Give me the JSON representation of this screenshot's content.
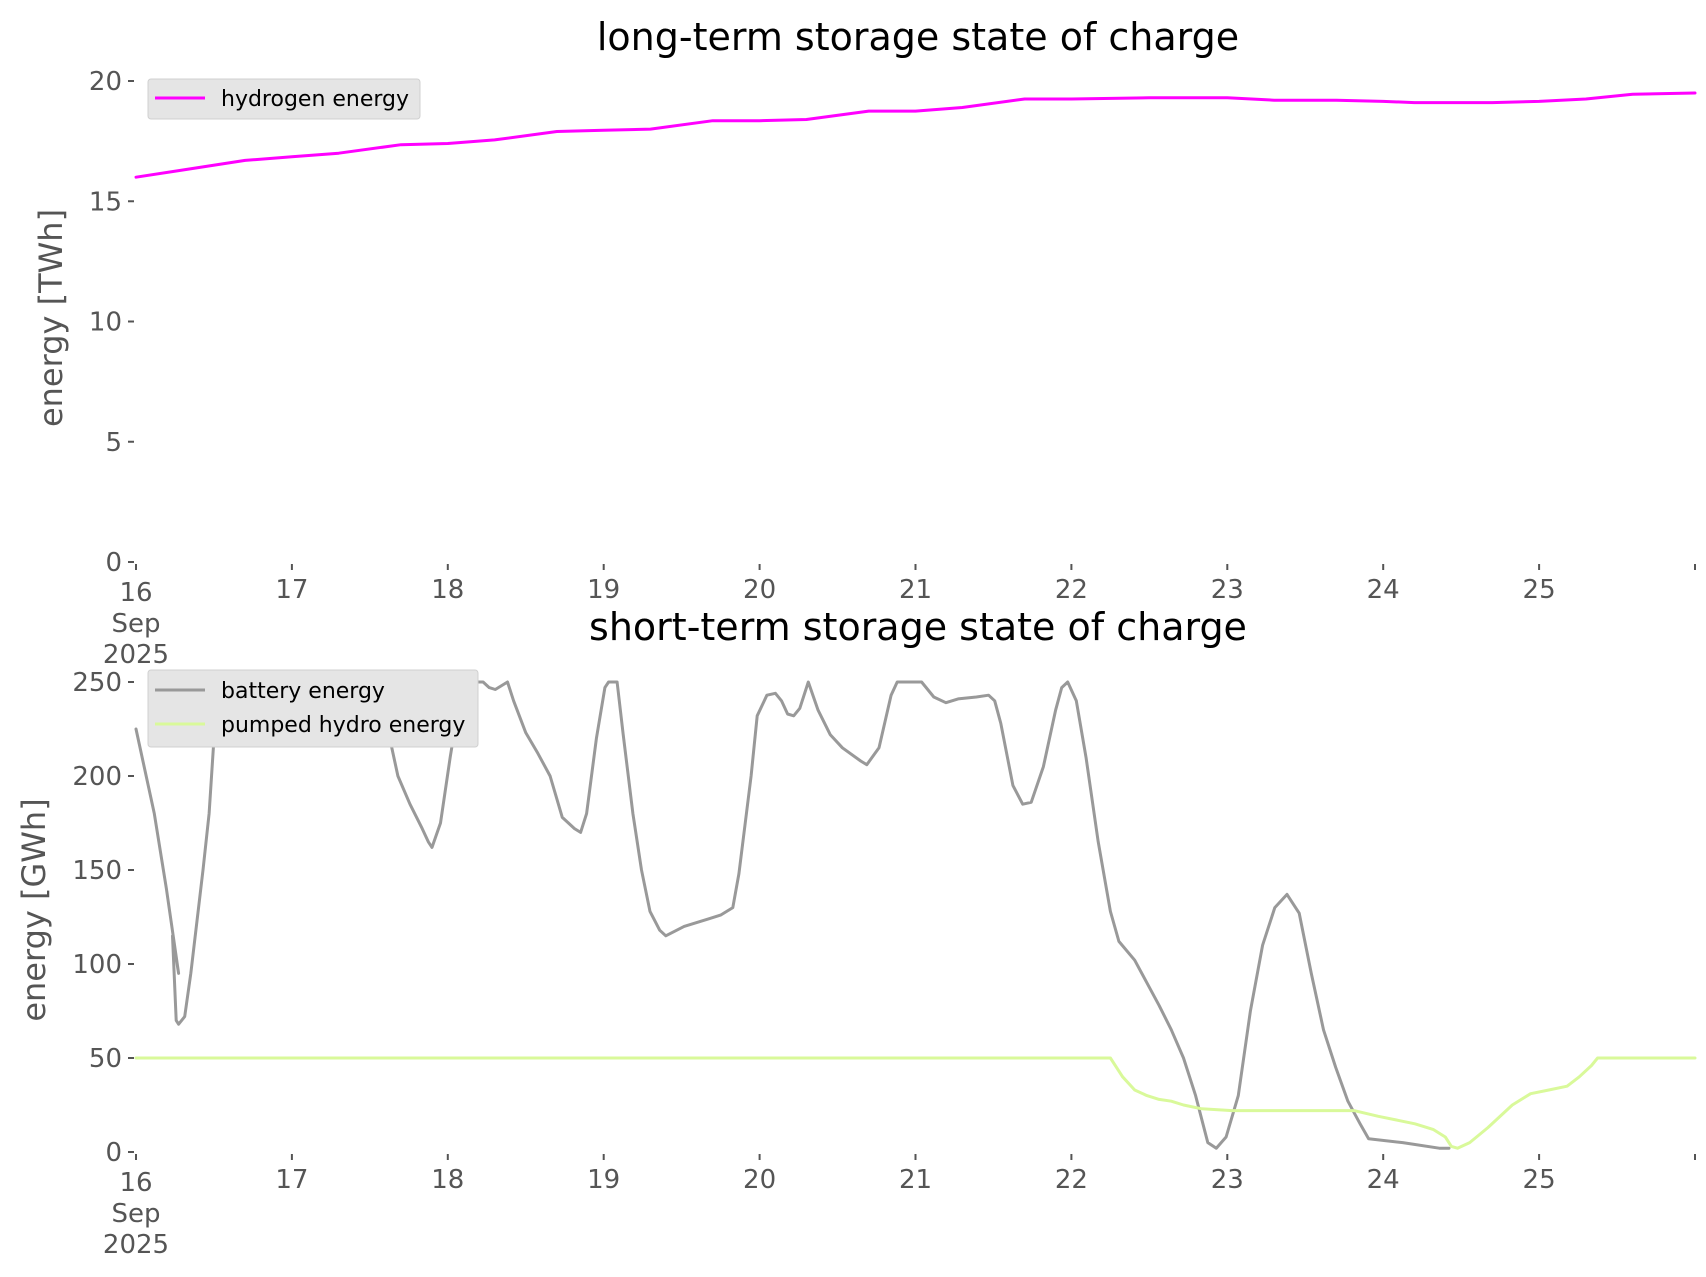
{
  "colors": {
    "hydrogen": "#ff00ff",
    "battery": "#999999",
    "pumped_hydro": "#d9f99a",
    "tick": "#555555",
    "legend_bg": "#e5e5e5"
  },
  "chart_data": [
    {
      "type": "line",
      "title": "long-term storage state of charge",
      "ylabel": "energy [TWh]",
      "xlabel": "",
      "ylim": [
        0,
        20
      ],
      "yticks": [
        "0",
        "5",
        "10",
        "15",
        "20"
      ],
      "xlim": [
        "2025-09-16",
        "2025-09-26"
      ],
      "xticks": [
        "16",
        "17",
        "18",
        "19",
        "20",
        "21",
        "22",
        "23",
        "24",
        "25"
      ],
      "xtick_first_lines": [
        "16",
        "Sep",
        "2025"
      ],
      "grid": false,
      "legend_position": "upper-left",
      "series": [
        {
          "name": "hydrogen energy",
          "color": "#ff00ff",
          "points": [
            [
              0.0,
              16.0
            ],
            [
              0.3,
              16.3
            ],
            [
              0.7,
              16.7
            ],
            [
              1.0,
              16.85
            ],
            [
              1.3,
              17.0
            ],
            [
              1.7,
              17.35
            ],
            [
              2.0,
              17.4
            ],
            [
              2.3,
              17.55
            ],
            [
              2.7,
              17.9
            ],
            [
              3.0,
              17.95
            ],
            [
              3.3,
              18.0
            ],
            [
              3.7,
              18.35
            ],
            [
              4.0,
              18.35
            ],
            [
              4.3,
              18.4
            ],
            [
              4.7,
              18.75
            ],
            [
              5.0,
              18.75
            ],
            [
              5.3,
              18.9
            ],
            [
              5.7,
              19.25
            ],
            [
              6.0,
              19.25
            ],
            [
              6.5,
              19.3
            ],
            [
              7.0,
              19.3
            ],
            [
              7.3,
              19.2
            ],
            [
              7.7,
              19.2
            ],
            [
              8.0,
              19.15
            ],
            [
              8.2,
              19.1
            ],
            [
              8.7,
              19.1
            ],
            [
              9.0,
              19.15
            ],
            [
              9.3,
              19.25
            ],
            [
              9.6,
              19.45
            ],
            [
              10.0,
              19.5
            ]
          ]
        }
      ]
    },
    {
      "type": "line",
      "title": "short-term storage state of charge",
      "ylabel": "energy [GWh]",
      "xlabel": "",
      "ylim": [
        0,
        250
      ],
      "yticks": [
        "0",
        "50",
        "100",
        "150",
        "200",
        "250"
      ],
      "xlim": [
        "2025-09-16",
        "2025-09-26"
      ],
      "xticks": [
        "16",
        "17",
        "18",
        "19",
        "20",
        "21",
        "22",
        "23",
        "24",
        "25"
      ],
      "xtick_first_lines": [
        "16",
        "Sep",
        "2025"
      ],
      "grid": false,
      "legend_position": "upper-left",
      "series": [
        {
          "name": "battery energy",
          "color": "#999999",
          "points": [
            [
              0.0,
              225
            ],
            [
              0.15,
              180
            ],
            [
              0.25,
              140
            ],
            [
              0.35,
              95
            ],
            [
              0.3,
              115
            ],
            [
              0.33,
              70
            ],
            [
              0.35,
              68
            ],
            [
              0.4,
              72
            ],
            [
              0.45,
              95
            ],
            [
              0.55,
              150
            ],
            [
              0.6,
              180
            ],
            [
              0.65,
              230
            ],
            [
              0.7,
              245
            ],
            [
              0.8,
              248
            ],
            [
              1.0,
              245
            ],
            [
              1.3,
              238
            ],
            [
              1.6,
              250
            ],
            [
              1.8,
              250
            ],
            [
              1.85,
              247
            ],
            [
              1.95,
              248
            ],
            [
              2.0,
              240
            ],
            [
              2.1,
              215
            ],
            [
              2.15,
              200
            ],
            [
              2.25,
              185
            ],
            [
              2.35,
              172
            ],
            [
              2.4,
              165
            ],
            [
              2.43,
              162
            ],
            [
              2.5,
              175
            ],
            [
              2.58,
              210
            ],
            [
              2.65,
              238
            ],
            [
              2.7,
              250
            ],
            [
              2.85,
              250
            ],
            [
              2.9,
              247
            ],
            [
              2.95,
              246
            ],
            [
              3.05,
              250
            ],
            [
              3.1,
              240
            ],
            [
              3.2,
              223
            ],
            [
              3.3,
              212
            ],
            [
              3.4,
              200
            ],
            [
              3.5,
              178
            ],
            [
              3.6,
              172
            ],
            [
              3.65,
              170
            ],
            [
              3.7,
              180
            ],
            [
              3.78,
              220
            ],
            [
              3.85,
              247
            ],
            [
              3.88,
              250
            ],
            [
              3.95,
              250
            ],
            [
              4.0,
              222
            ],
            [
              4.08,
              180
            ],
            [
              4.15,
              150
            ],
            [
              4.22,
              128
            ],
            [
              4.3,
              118
            ],
            [
              4.35,
              115
            ],
            [
              4.5,
              120
            ],
            [
              4.7,
              124
            ],
            [
              4.8,
              126
            ],
            [
              4.9,
              130
            ],
            [
              4.95,
              148
            ],
            [
              5.05,
              200
            ],
            [
              5.1,
              232
            ],
            [
              5.18,
              243
            ],
            [
              5.25,
              244
            ],
            [
              5.3,
              240
            ],
            [
              5.35,
              233
            ],
            [
              5.4,
              232
            ],
            [
              5.45,
              236
            ],
            [
              5.52,
              250
            ],
            [
              5.6,
              235
            ],
            [
              5.7,
              222
            ],
            [
              5.8,
              215
            ],
            [
              5.95,
              208
            ],
            [
              6.0,
              206
            ],
            [
              6.1,
              215
            ],
            [
              6.2,
              243
            ],
            [
              6.25,
              250
            ],
            [
              6.45,
              250
            ],
            [
              6.55,
              242
            ],
            [
              6.65,
              239
            ],
            [
              6.75,
              241
            ],
            [
              6.9,
              242
            ],
            [
              7.0,
              243
            ],
            [
              7.05,
              240
            ],
            [
              7.1,
              228
            ],
            [
              7.2,
              195
            ],
            [
              7.28,
              185
            ],
            [
              7.35,
              186
            ],
            [
              7.45,
              205
            ],
            [
              7.55,
              235
            ],
            [
              7.6,
              247
            ],
            [
              7.65,
              250
            ],
            [
              7.72,
              240
            ],
            [
              7.8,
              210
            ],
            [
              7.9,
              165
            ],
            [
              8.0,
              128
            ],
            [
              8.07,
              112
            ],
            [
              8.2,
              102
            ],
            [
              8.3,
              90
            ],
            [
              8.4,
              78
            ],
            [
              8.5,
              65
            ],
            [
              8.6,
              50
            ],
            [
              8.7,
              30
            ],
            [
              8.8,
              5
            ],
            [
              8.87,
              2
            ],
            [
              8.95,
              8
            ],
            [
              9.05,
              30
            ],
            [
              9.15,
              75
            ],
            [
              9.25,
              110
            ],
            [
              9.35,
              130
            ],
            [
              9.45,
              137
            ],
            [
              9.55,
              127
            ],
            [
              9.65,
              95
            ],
            [
              9.75,
              65
            ],
            [
              9.85,
              45
            ],
            [
              9.95,
              27
            ],
            [
              10.05,
              15
            ],
            [
              10.12,
              7
            ],
            [
              10.4,
              5
            ],
            [
              10.7,
              2
            ],
            [
              10.78,
              2
            ]
          ]
        },
        {
          "name": "pumped hydro energy",
          "color": "#d9f99a",
          "points": [
            [
              0.0,
              50
            ],
            [
              8.0,
              50
            ],
            [
              8.1,
              40
            ],
            [
              8.2,
              33
            ],
            [
              8.3,
              30
            ],
            [
              8.4,
              28
            ],
            [
              8.5,
              27
            ],
            [
              8.6,
              25
            ],
            [
              8.75,
              23
            ],
            [
              9.0,
              22
            ],
            [
              10.0,
              22
            ],
            [
              10.2,
              19
            ],
            [
              10.5,
              15
            ],
            [
              10.65,
              12
            ],
            [
              10.75,
              8
            ],
            [
              10.8,
              3
            ],
            [
              10.85,
              2
            ],
            [
              10.95,
              5
            ],
            [
              11.1,
              13
            ],
            [
              11.3,
              25
            ],
            [
              11.45,
              31
            ],
            [
              11.6,
              33
            ],
            [
              11.75,
              35
            ],
            [
              11.85,
              40
            ],
            [
              11.95,
              46
            ],
            [
              12.0,
              50
            ],
            [
              12.8,
              50
            ]
          ]
        }
      ]
    }
  ]
}
